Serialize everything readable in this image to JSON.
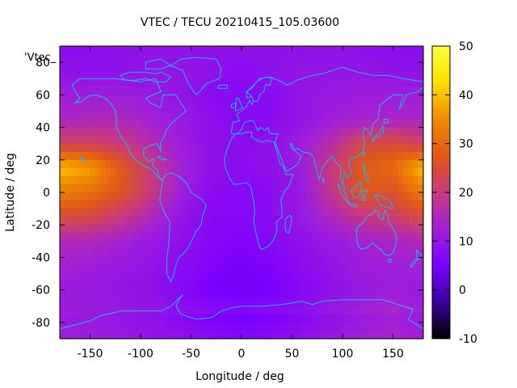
{
  "chart_data": {
    "type": "heatmap",
    "title": "VTEC / TECU 20210415_105.03600",
    "xlabel": "Longitude / deg",
    "ylabel": "Latitude / deg",
    "key_label": "'Vtec_",
    "xlim": [
      -180,
      180
    ],
    "ylim": [
      -90,
      90
    ],
    "x_ticks": [
      -150,
      -100,
      -50,
      0,
      50,
      100,
      150
    ],
    "y_ticks": [
      -80,
      -60,
      -40,
      -20,
      0,
      20,
      40,
      60,
      80
    ],
    "colorbar": {
      "range": [
        -10,
        50
      ],
      "ticks": [
        -10,
        0,
        10,
        20,
        30,
        40,
        50
      ],
      "palette": [
        "#000000",
        "#3a00a0",
        "#7b00ff",
        "#a020d8",
        "#c83a7a",
        "#e05818",
        "#f08a00",
        "#ffe000",
        "#ffff40"
      ]
    },
    "grid": {
      "lon": [
        -180,
        -150,
        -120,
        -90,
        -60,
        -30,
        0,
        30,
        60,
        90,
        120,
        150
      ],
      "lat": [
        90,
        75,
        60,
        45,
        30,
        15,
        0,
        -15,
        -30,
        -45,
        -60,
        -75
      ],
      "values": [
        [
          8,
          8,
          9,
          9,
          9,
          9,
          9,
          9,
          9,
          9,
          9,
          8
        ],
        [
          9,
          9,
          9,
          10,
          10,
          9,
          8,
          9,
          10,
          10,
          10,
          9
        ],
        [
          12,
          12,
          12,
          11,
          10,
          8,
          7,
          8,
          10,
          11,
          12,
          12
        ],
        [
          14,
          15,
          15,
          13,
          11,
          9,
          7,
          8,
          10,
          12,
          13,
          14
        ],
        [
          22,
          22,
          20,
          16,
          12,
          9,
          8,
          9,
          12,
          17,
          24,
          25
        ],
        [
          40,
          37,
          28,
          20,
          13,
          9,
          8,
          9,
          12,
          20,
          28,
          30
        ],
        [
          33,
          31,
          27,
          20,
          12,
          8,
          7,
          8,
          11,
          19,
          27,
          26
        ],
        [
          25,
          24,
          20,
          15,
          10,
          7,
          7,
          8,
          11,
          15,
          19,
          21
        ],
        [
          15,
          15,
          13,
          11,
          9,
          7,
          6,
          7,
          9,
          11,
          13,
          14
        ],
        [
          13,
          12,
          11,
          10,
          8,
          6,
          5,
          6,
          8,
          10,
          12,
          12
        ],
        [
          11,
          11,
          10,
          9,
          7,
          5,
          4,
          5,
          7,
          9,
          11,
          12
        ],
        [
          12,
          12,
          11,
          10,
          9,
          8,
          7,
          8,
          9,
          11,
          13,
          14
        ]
      ]
    },
    "coastline_color": "#1fb4e8"
  }
}
